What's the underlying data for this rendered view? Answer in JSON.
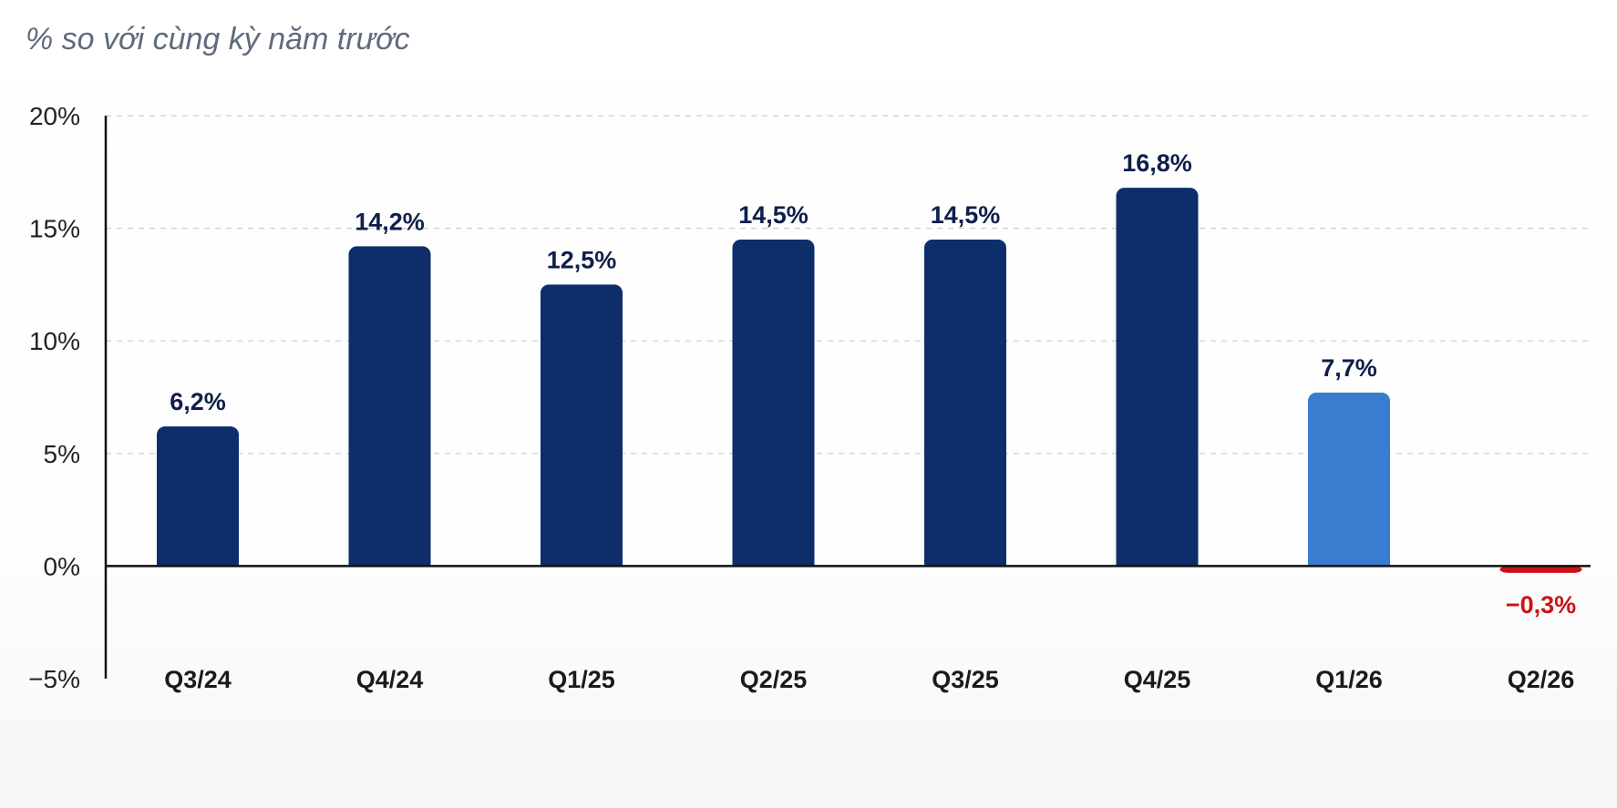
{
  "header": {
    "subtitle": "% so với cùng kỳ năm trước"
  },
  "colors": {
    "dark_navy": "#0e2e6b",
    "light_blue": "#3a7ccf",
    "negative_red": "#cc1219",
    "label_dark": "#0f1f4a",
    "grid": "#cccccc",
    "axis": "#111111"
  },
  "chart_data": {
    "type": "bar",
    "title": "",
    "subtitle": "% so với cùng kỳ năm trước",
    "xlabel": "",
    "ylabel": "",
    "categories": [
      "Q3/24",
      "Q4/24",
      "Q1/25",
      "Q2/25",
      "Q3/25",
      "Q4/25",
      "Q1/26",
      "Q2/26"
    ],
    "values": [
      6.2,
      14.2,
      12.5,
      14.5,
      14.5,
      16.8,
      7.7,
      -0.3
    ],
    "data_labels": [
      "6,2%",
      "14,2%",
      "12,5%",
      "14,5%",
      "14,5%",
      "16,8%",
      "7,7%",
      "−0,3%"
    ],
    "bar_colors": [
      "#0e2e6b",
      "#0e2e6b",
      "#0e2e6b",
      "#0e2e6b",
      "#0e2e6b",
      "#0e2e6b",
      "#3a7ccf",
      "#cc1219"
    ],
    "ylim": [
      -5,
      20
    ],
    "yticks": [
      20,
      15,
      10,
      5,
      0,
      -5
    ],
    "ytick_labels": [
      "20%",
      "15%",
      "10%",
      "5%",
      "0%",
      "−5%"
    ],
    "grid": "horizontal dashed",
    "legend": "none"
  }
}
